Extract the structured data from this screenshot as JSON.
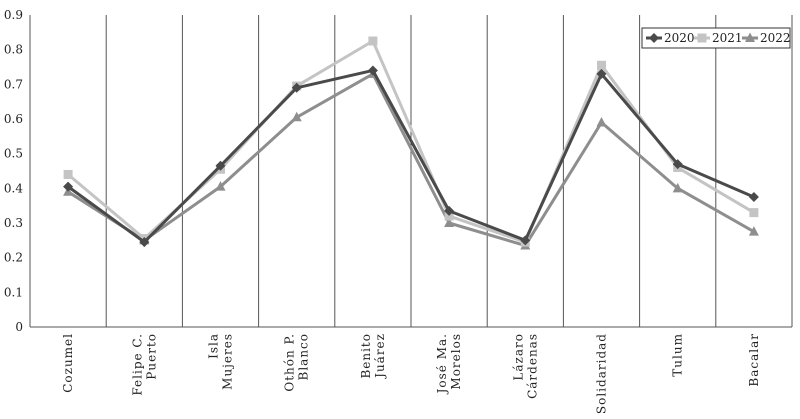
{
  "chart_data": {
    "type": "line",
    "title": "",
    "xlabel": "",
    "ylabel": "",
    "ylim": [
      0,
      0.9
    ],
    "yticks": [
      "0",
      "0.1",
      "0.2",
      "0.3",
      "0.4",
      "0.5",
      "0.6",
      "0.7",
      "0.8",
      "0.9"
    ],
    "grid": "vertical",
    "legend_position": "top-right",
    "categories": [
      [
        "Cozumel"
      ],
      [
        "Felipe C.",
        "Puerto"
      ],
      [
        "Isla",
        "Mujeres"
      ],
      [
        "Othón P.",
        "Blanco"
      ],
      [
        "Benito",
        "Juárez"
      ],
      [
        "José Ma.",
        "Morelos"
      ],
      [
        "Lázaro",
        "Cárdenas"
      ],
      [
        "Solidaridad"
      ],
      [
        "Tulum"
      ],
      [
        "Bacalar"
      ]
    ],
    "series": [
      {
        "name": "2020",
        "color": "#4a4a4a",
        "marker": "diamond",
        "values": [
          0.405,
          0.245,
          0.465,
          0.69,
          0.74,
          0.335,
          0.25,
          0.73,
          0.47,
          0.375
        ]
      },
      {
        "name": "2021",
        "color": "#c4c4c4",
        "marker": "square",
        "values": [
          0.44,
          0.255,
          0.455,
          0.695,
          0.825,
          0.32,
          0.245,
          0.755,
          0.46,
          0.33
        ]
      },
      {
        "name": "2022",
        "color": "#8e8e8e",
        "marker": "triangle",
        "values": [
          0.39,
          0.25,
          0.405,
          0.605,
          0.73,
          0.3,
          0.235,
          0.59,
          0.4,
          0.275
        ]
      }
    ]
  }
}
